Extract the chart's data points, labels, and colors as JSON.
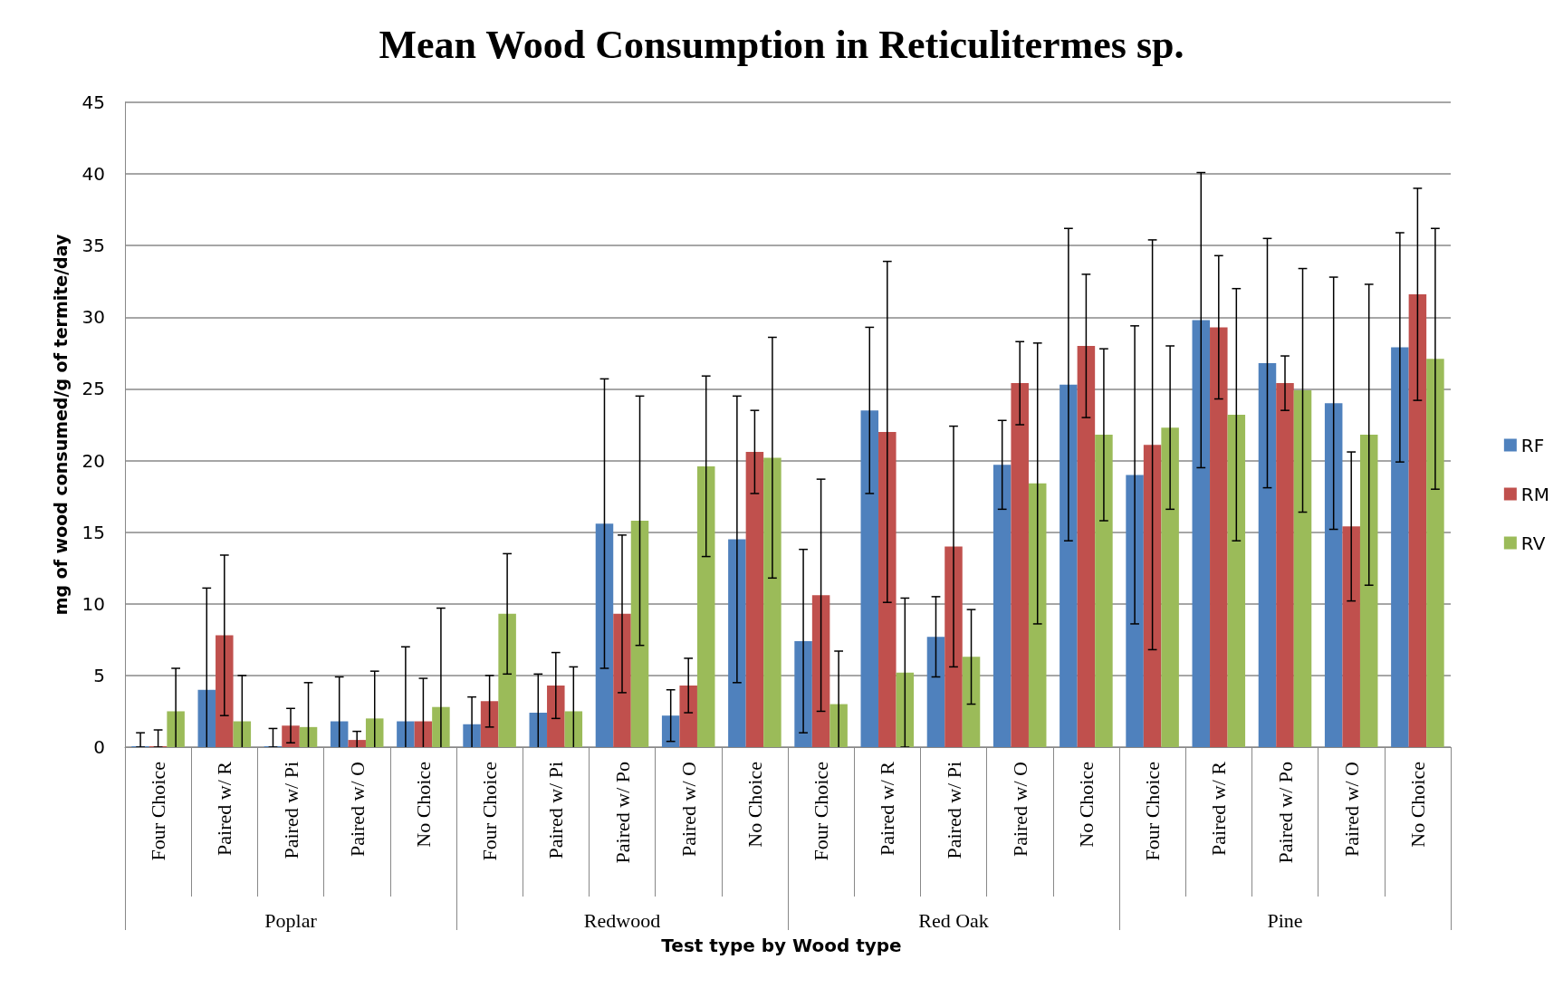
{
  "chart_data": {
    "type": "bar",
    "title": "Mean Wood Consumption in Reticulitermes sp.",
    "xlabel": "Test type by Wood type",
    "ylabel": "mg of wood consumed/g of termite/day",
    "categories": [
      "Four Choice",
      "Paired w/ R",
      "Paired w/ Pi",
      "Paired w/ O",
      "No Choice",
      "Four Choice",
      "Paired w/ Pi",
      "Paired w/ Po",
      "Paired w/ O",
      "No Choice",
      "Four Choice",
      "Paired w/ R",
      "Paired w/ Pi",
      "Paired w/ O",
      "No Choice",
      "Four Choice",
      "Paired w/ R",
      "Paired w/ Po",
      "Paired w/ O",
      "No Choice"
    ],
    "annotations": [
      "Poplar",
      "Redwood",
      "Red Oak",
      "Pine"
    ],
    "series": [
      {
        "name": "RF",
        "color": "#4f81bd",
        "values": [
          0,
          4.0,
          0,
          1.8,
          1.8,
          1.6,
          2.4,
          15.6,
          2.2,
          14.5,
          7.4,
          23.5,
          7.7,
          19.7,
          25.3,
          19.0,
          29.8,
          26.8,
          24.0,
          27.9
        ],
        "errors": [
          [
            0,
            1.0
          ],
          7.1,
          [
            0,
            1.3
          ],
          3.1,
          5.2,
          1.9,
          2.7,
          10.1,
          1.8,
          10.0,
          6.4,
          5.8,
          2.8,
          3.1,
          10.9,
          10.4,
          10.3,
          8.7,
          8.8,
          8.0
        ]
      },
      {
        "name": "RM",
        "color": "#c0504d",
        "values": [
          0,
          7.8,
          1.5,
          0.5,
          1.8,
          3.2,
          4.3,
          9.3,
          4.3,
          20.6,
          10.6,
          22.0,
          14.0,
          25.4,
          28.0,
          21.1,
          29.3,
          25.4,
          15.4,
          31.6
        ],
        "errors": [
          [
            0,
            1.2
          ],
          5.6,
          1.2,
          0.6,
          3.0,
          1.8,
          2.3,
          5.5,
          1.9,
          2.9,
          8.1,
          11.9,
          8.4,
          2.9,
          5.0,
          14.3,
          5.0,
          1.9,
          5.2,
          7.4
        ]
      },
      {
        "name": "RV",
        "color": "#9bbb59",
        "values": [
          2.5,
          1.8,
          1.4,
          2.0,
          2.8,
          9.3,
          2.5,
          15.8,
          19.6,
          20.2,
          3.0,
          5.2,
          6.3,
          18.4,
          21.8,
          22.3,
          23.2,
          24.9,
          21.8,
          27.1
        ],
        "errors": [
          3.0,
          3.2,
          3.1,
          3.3,
          6.9,
          4.2,
          3.1,
          8.7,
          6.3,
          8.4,
          3.7,
          5.2,
          3.3,
          9.8,
          6.0,
          5.7,
          8.8,
          8.5,
          10.5,
          9.1
        ]
      }
    ],
    "ylim": [
      0,
      45
    ],
    "yticks": [
      0,
      5,
      10,
      15,
      20,
      25,
      30,
      35,
      40,
      45
    ],
    "grid": "y",
    "legend": "right"
  }
}
